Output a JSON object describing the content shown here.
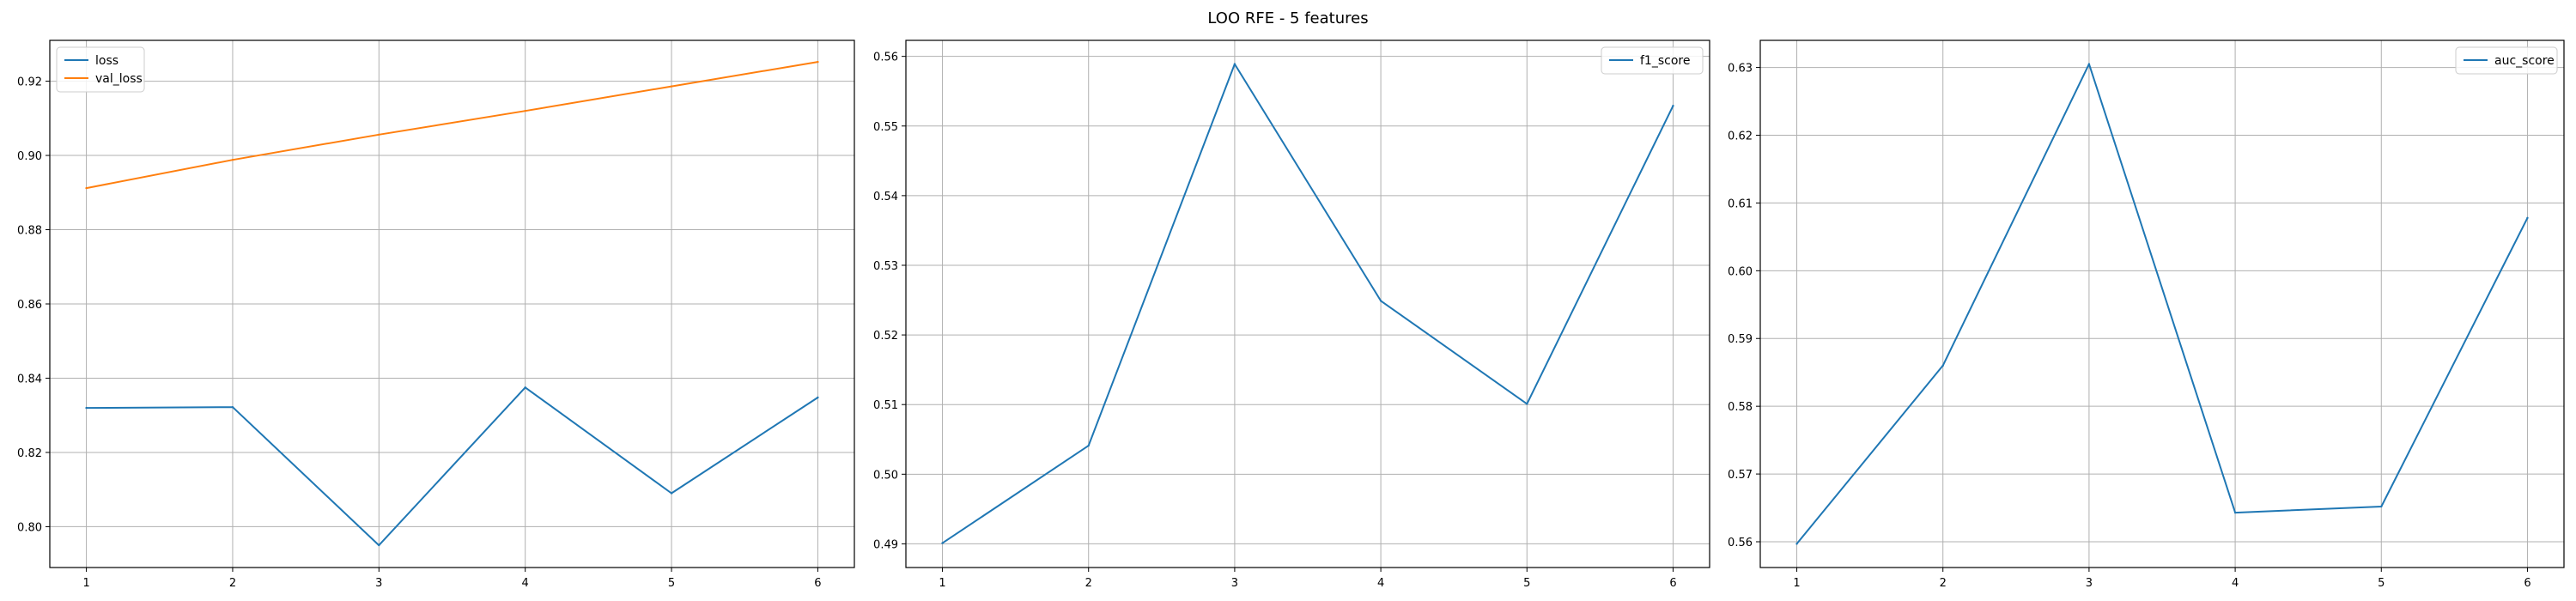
{
  "figure": {
    "title": "LOO RFE - 5 features"
  },
  "colors": {
    "blue": "#1f77b4",
    "orange": "#ff7f0e",
    "grid": "#b0b0b0",
    "axes": "#000000",
    "background": "#ffffff"
  },
  "chart_data": [
    {
      "type": "line",
      "title": "",
      "xlabel": "",
      "ylabel": "",
      "x": [
        1,
        2,
        3,
        4,
        5,
        6
      ],
      "xticks": [
        "1",
        "2",
        "3",
        "4",
        "5",
        "6"
      ],
      "xlim": [
        0.75,
        6.25
      ],
      "ylim": [
        0.789,
        0.931
      ],
      "yticks": [
        "0.80",
        "0.82",
        "0.84",
        "0.86",
        "0.88",
        "0.90",
        "0.92"
      ],
      "ytick_values": [
        0.8,
        0.82,
        0.84,
        0.86,
        0.88,
        0.9,
        0.92
      ],
      "grid": true,
      "legend_position": "top-left",
      "series": [
        {
          "name": "loss",
          "color": "#1f77b4",
          "values": [
            0.832,
            0.8322,
            0.795,
            0.8375,
            0.809,
            0.8348
          ]
        },
        {
          "name": "val_loss",
          "color": "#ff7f0e",
          "values": [
            0.8912,
            0.8988,
            0.9056,
            0.912,
            0.9186,
            0.9252
          ]
        }
      ]
    },
    {
      "type": "line",
      "title": "",
      "xlabel": "",
      "ylabel": "",
      "x": [
        1,
        2,
        3,
        4,
        5,
        6
      ],
      "xticks": [
        "1",
        "2",
        "3",
        "4",
        "5",
        "6"
      ],
      "xlim": [
        0.75,
        6.25
      ],
      "ylim": [
        0.4866,
        0.5623
      ],
      "yticks": [
        "0.49",
        "0.50",
        "0.51",
        "0.52",
        "0.53",
        "0.54",
        "0.55",
        "0.56"
      ],
      "ytick_values": [
        0.49,
        0.5,
        0.51,
        0.52,
        0.53,
        0.54,
        0.55,
        0.56
      ],
      "grid": true,
      "legend_position": "top-right",
      "series": [
        {
          "name": "f1_score",
          "color": "#1f77b4",
          "values": [
            0.4901,
            0.5041,
            0.5589,
            0.5249,
            0.5101,
            0.5529
          ]
        }
      ]
    },
    {
      "type": "line",
      "title": "",
      "xlabel": "",
      "ylabel": "",
      "x": [
        1,
        2,
        3,
        4,
        5,
        6
      ],
      "xticks": [
        "1",
        "2",
        "3",
        "4",
        "5",
        "6"
      ],
      "xlim": [
        0.75,
        6.25
      ],
      "ylim": [
        0.5562,
        0.634
      ],
      "yticks": [
        "0.56",
        "0.57",
        "0.58",
        "0.59",
        "0.60",
        "0.61",
        "0.62",
        "0.63"
      ],
      "ytick_values": [
        0.56,
        0.57,
        0.58,
        0.59,
        0.6,
        0.61,
        0.62,
        0.63
      ],
      "grid": true,
      "legend_position": "top-right",
      "series": [
        {
          "name": "auc_score",
          "color": "#1f77b4",
          "values": [
            0.5597,
            0.586,
            0.6305,
            0.5643,
            0.5652,
            0.6078
          ]
        }
      ]
    }
  ]
}
